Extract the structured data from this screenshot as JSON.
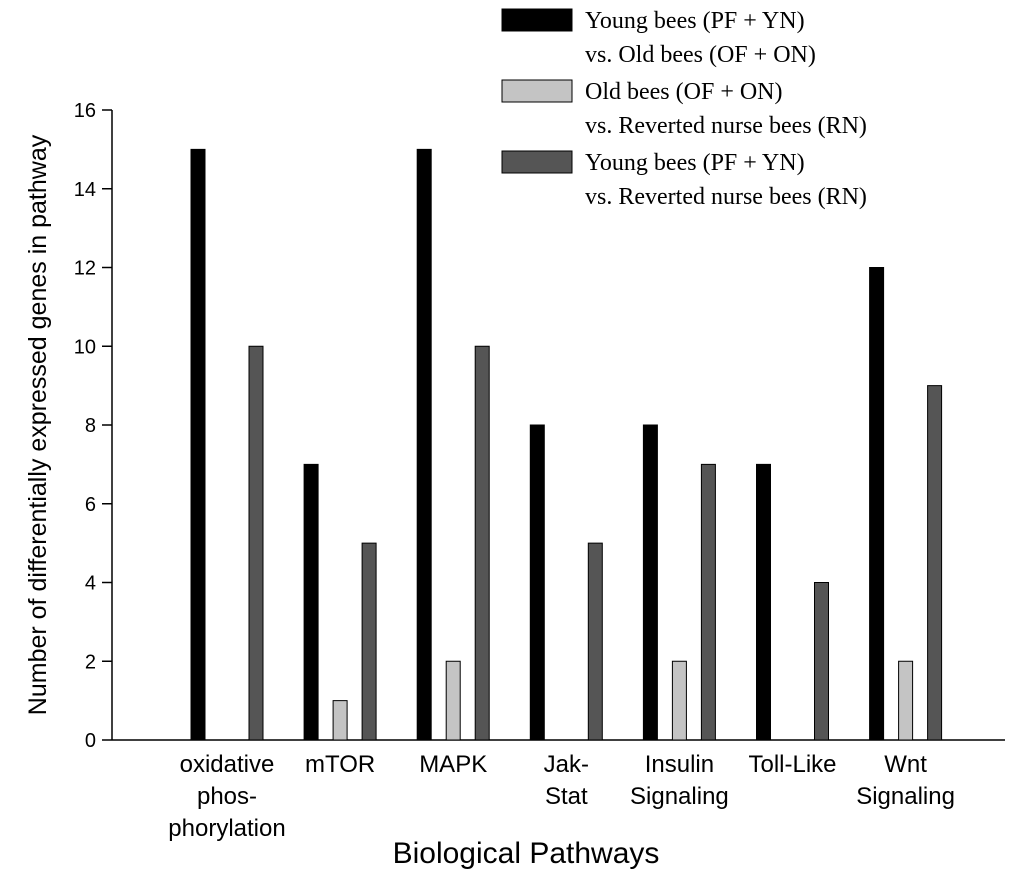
{
  "chart_data": {
    "type": "bar",
    "xlabel": "Biological Pathways",
    "ylabel": "Number of differentially expressed genes in pathway",
    "ylim": [
      0,
      16
    ],
    "yticks": [
      "0",
      "2",
      "4",
      "6",
      "8",
      "10",
      "12",
      "14",
      "16"
    ],
    "categories": [
      [
        "oxidative",
        "phos-",
        "phorylation"
      ],
      [
        "mTOR"
      ],
      [
        "MAPK"
      ],
      [
        "Jak-",
        "Stat"
      ],
      [
        "Insulin",
        "Signaling"
      ],
      [
        "Toll-Like"
      ],
      [
        "Wnt",
        "Signaling"
      ]
    ],
    "series": [
      {
        "name": [
          "Young bees (PF + YN)",
          "vs. Old bees (OF + ON)"
        ],
        "color": "#000000",
        "values": [
          15,
          7,
          15,
          8,
          8,
          7,
          12
        ]
      },
      {
        "name": [
          "Old bees (OF + ON)",
          "vs. Reverted nurse bees (RN)"
        ],
        "color": "#c4c4c4",
        "values": [
          0,
          1,
          2,
          0,
          2,
          0,
          2
        ]
      },
      {
        "name": [
          "Young bees (PF + YN)",
          "vs. Reverted nurse bees (RN)"
        ],
        "color": "#555555",
        "values": [
          10,
          5,
          10,
          5,
          7,
          4,
          9
        ]
      }
    ],
    "legend_position": "top-right",
    "grid": false
  }
}
